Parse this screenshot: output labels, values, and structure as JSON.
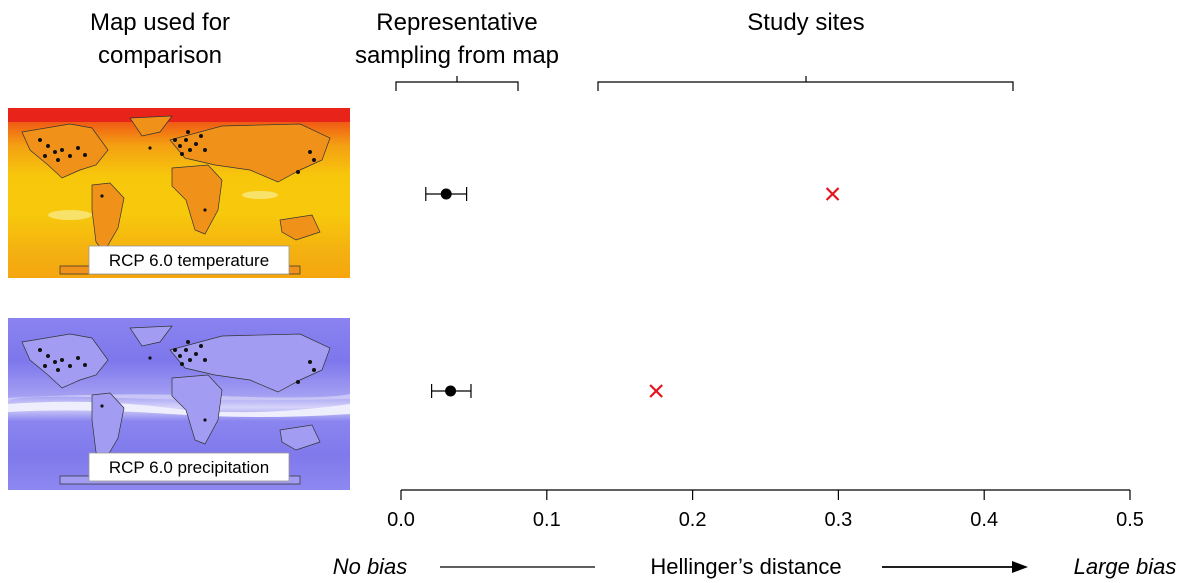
{
  "headers": {
    "map_col": [
      "Map used for",
      "comparison"
    ],
    "rep_col": [
      "Representative",
      "sampling from map"
    ],
    "study_col": "Study sites"
  },
  "maps": [
    {
      "label": "RCP 6.0 temperature",
      "palette": [
        "#e8231a",
        "#f05a14",
        "#f4a012",
        "#f7c70c",
        "#f9e26a"
      ]
    },
    {
      "label": "RCP 6.0 precipitation",
      "palette": [
        "#8a83f0",
        "#a39ff2",
        "#b9b6f5",
        "#d6d4fa",
        "#3a3ad9"
      ]
    }
  ],
  "chart_data": {
    "type": "scatter",
    "xlabel": "Hellinger’s distance",
    "xlim": [
      0.0,
      0.5
    ],
    "x_ticks": [
      0.0,
      0.1,
      0.2,
      0.3,
      0.4,
      0.5
    ],
    "x_tick_labels": [
      "0.0",
      "0.1",
      "0.2",
      "0.3",
      "0.4",
      "0.5"
    ],
    "rows": [
      "RCP 6.0 temperature",
      "RCP 6.0 precipitation"
    ],
    "representative_sampling": [
      {
        "row": "RCP 6.0 temperature",
        "x": 0.031,
        "xerr_low": 0.017,
        "xerr_high": 0.045
      },
      {
        "row": "RCP 6.0 precipitation",
        "x": 0.034,
        "xerr_low": 0.021,
        "xerr_high": 0.048
      }
    ],
    "study_sites": [
      {
        "row": "RCP 6.0 temperature",
        "x": 0.296
      },
      {
        "row": "RCP 6.0 precipitation",
        "x": 0.175
      }
    ],
    "left_annotation": "No bias",
    "right_annotation": "Large bias",
    "marker_colors": {
      "representative": "#000000",
      "study": "#e3141b"
    }
  }
}
